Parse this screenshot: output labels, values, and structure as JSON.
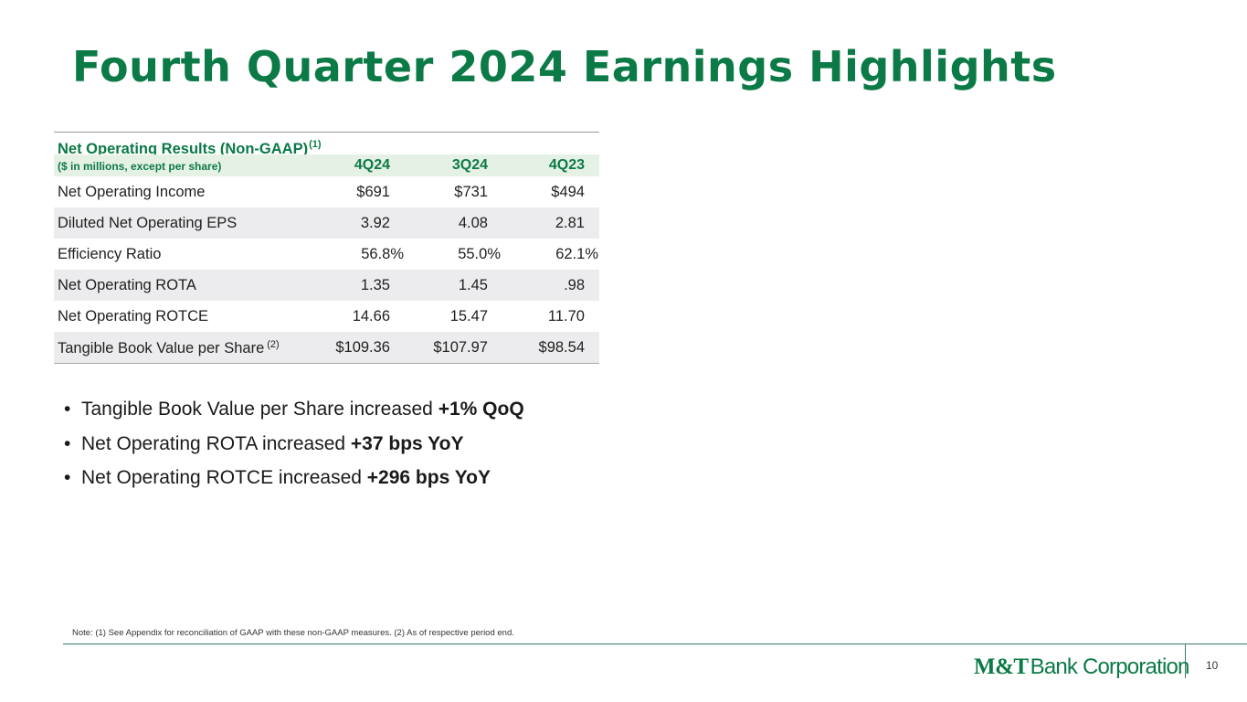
{
  "slide": {
    "title": "Fourth Quarter 2024 Earnings Highlights",
    "page_number": "10"
  },
  "table": {
    "title": "Net Operating Results (Non-GAAP)",
    "title_footnote": "(1)",
    "units_label": "($ in millions, except per share)",
    "columns": [
      "4Q24",
      "3Q24",
      "4Q23"
    ],
    "rows": [
      {
        "label": "Net Operating Income",
        "footnote": "",
        "values": [
          "$691",
          "$731",
          "$494"
        ]
      },
      {
        "label": "Diluted Net Operating EPS",
        "footnote": "",
        "values": [
          "3.92",
          "4.08",
          "2.81"
        ]
      },
      {
        "label": "Efficiency Ratio",
        "footnote": "",
        "values": [
          "56.8%",
          "55.0%",
          "62.1%"
        ]
      },
      {
        "label": "Net Operating ROTA",
        "footnote": "",
        "values": [
          "1.35",
          "1.45",
          ".98"
        ]
      },
      {
        "label": "Net Operating ROTCE",
        "footnote": "",
        "values": [
          "14.66",
          "15.47",
          "11.70"
        ]
      },
      {
        "label": "Tangible Book Value per Share",
        "footnote": "(2)",
        "values": [
          "$109.36",
          "$107.97",
          "$98.54"
        ]
      }
    ]
  },
  "bullets": [
    {
      "text": "Tangible Book Value per Share increased ",
      "bold": "+1% QoQ"
    },
    {
      "text": "Net Operating ROTA increased ",
      "bold": "+37 bps YoY"
    },
    {
      "text": "Net Operating ROTCE increased ",
      "bold": "+296 bps YoY"
    }
  ],
  "bullet_marker": "•",
  "note": "Note: (1) See Appendix for reconciliation of GAAP with these non-GAAP measures. (2) As of respective period end.",
  "logo": {
    "mark": "M&T",
    "text": "Bank Corporation"
  },
  "colors": {
    "brand_green": "#0b7a46",
    "header_fill": "#e6f1e6",
    "row_shade": "#ececee"
  }
}
